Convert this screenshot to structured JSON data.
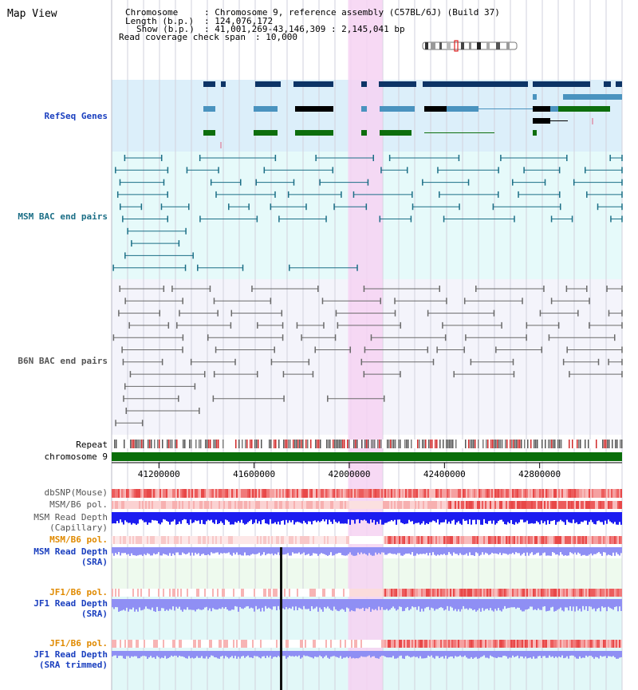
{
  "header": {
    "title": "Map View",
    "chromosome_key": "Chromosome",
    "chromosome_value": ": Chromosome 9, reference assembly (C57BL/6J) (Build 37)",
    "length_key": "Length (b.p.)",
    "length_value": ": 124,076,172",
    "show_key": "Show (b.p.)",
    "show_value": ": 41,001,269-43,146,309 : 2,145,041 bp",
    "coverage_key": "Read coverage check span",
    "coverage_value": ": 10,000"
  },
  "tracks": {
    "refseq": "RefSeq Genes",
    "msm_bac": "MSM BAC end pairs",
    "b6n_bac": "B6N BAC end pairs",
    "repeat": "Repeat",
    "chromosome": "chromosome 9",
    "dbsnp": "dbSNP(Mouse)",
    "msm_b6_pol_1": "MSM/B6 pol.",
    "msm_read_cap_1": "MSM Read Depth",
    "msm_read_cap_2": "(Capillary)",
    "msm_b6_pol_2": "MSM/B6 pol.",
    "msm_read_sra_1": "MSM Read Depth",
    "msm_read_sra_2": "(SRA)",
    "jf1_b6_pol_1": "JF1/B6 pol.",
    "jf1_read_sra_1": "JF1 Read Depth",
    "jf1_read_sra_2": "(SRA)",
    "jf1_b6_pol_2": "JF1/B6 pol.",
    "jf1_read_trim_1": "JF1 Read Depth",
    "jf1_read_trim_2": "(SRA trimmed)"
  },
  "axis": {
    "range_bp": [
      41001269,
      43146309
    ],
    "ticks": [
      {
        "value": 41200000,
        "label": "41200000"
      },
      {
        "value": 41600000,
        "label": "41600000"
      },
      {
        "value": 42000000,
        "label": "42000000"
      },
      {
        "value": 42400000,
        "label": "42400000"
      },
      {
        "value": 42800000,
        "label": "42800000"
      }
    ],
    "highlight_bp": [
      41995000,
      42140000
    ]
  },
  "colors": {
    "label_blue": "#1a3fbf",
    "label_teal": "#1b6e86",
    "label_gray": "#555555",
    "label_orange": "#e08a00",
    "refseq_bg": "#dceffa",
    "msm_bg": "#e6fafa",
    "b6n_bg": "#f4f4fb",
    "highlight": "#f6d2f2",
    "gene_navy": "#0d3466",
    "gene_blue": "#4a93bf",
    "gene_black": "#000000",
    "gene_green": "#0d6e0d",
    "msm_pair": "#1b6e86",
    "b6n_pair": "#6a6a6a",
    "chrom_bar": "#0a6e0a",
    "depth_blue": "#1c1cf0",
    "depth_light": "#8f8ff4",
    "snp_red": "#e84040"
  },
  "icons": {
    "ideogram": "chromosome-ideogram-icon",
    "cursor": "position-cursor-line"
  }
}
